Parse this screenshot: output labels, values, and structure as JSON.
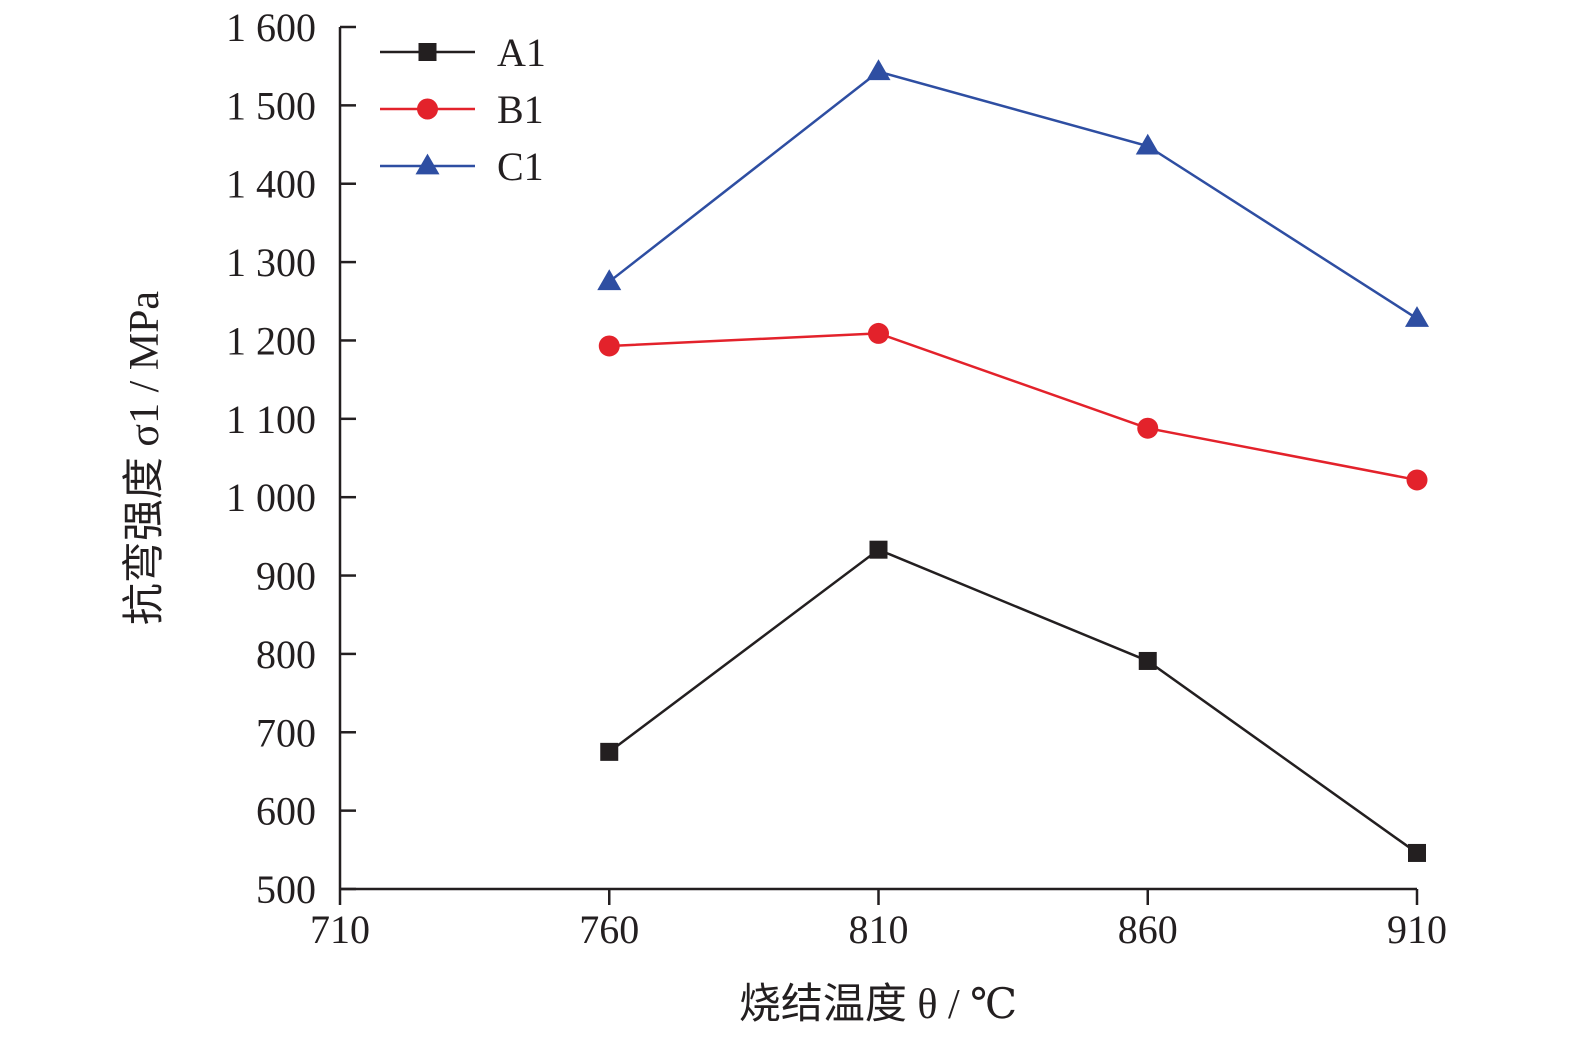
{
  "chart_data": {
    "type": "line",
    "xlabel": "烧结温度 θ / ℃",
    "ylabel": "抗弯强度 σ1 / MPa",
    "xlim": [
      710,
      910
    ],
    "ylim": [
      500,
      1600
    ],
    "x_ticks": [
      710,
      760,
      810,
      860,
      910
    ],
    "x_tick_labels": [
      "710",
      "760",
      "810",
      "860",
      "910"
    ],
    "y_ticks": [
      500,
      600,
      700,
      800,
      900,
      1000,
      1100,
      1200,
      1300,
      1400,
      1500,
      1600
    ],
    "y_tick_labels": [
      "500",
      "600",
      "700",
      "800",
      "900",
      "1 000",
      "1 100",
      "1 200",
      "1 300",
      "1 400",
      "1 500",
      "1 600"
    ],
    "grid": false,
    "legend_position": "top-left",
    "x": [
      760,
      810,
      860,
      910
    ],
    "series": [
      {
        "name": "A1",
        "marker": "square",
        "color": "#231f20",
        "values": [
          675,
          933,
          791,
          546
        ]
      },
      {
        "name": "B1",
        "marker": "circle",
        "color": "#e3222b",
        "values": [
          1193,
          1209,
          1088,
          1022
        ]
      },
      {
        "name": "C1",
        "marker": "triangle",
        "color": "#2e4ea2",
        "values": [
          1275,
          1543,
          1448,
          1228
        ]
      }
    ]
  }
}
